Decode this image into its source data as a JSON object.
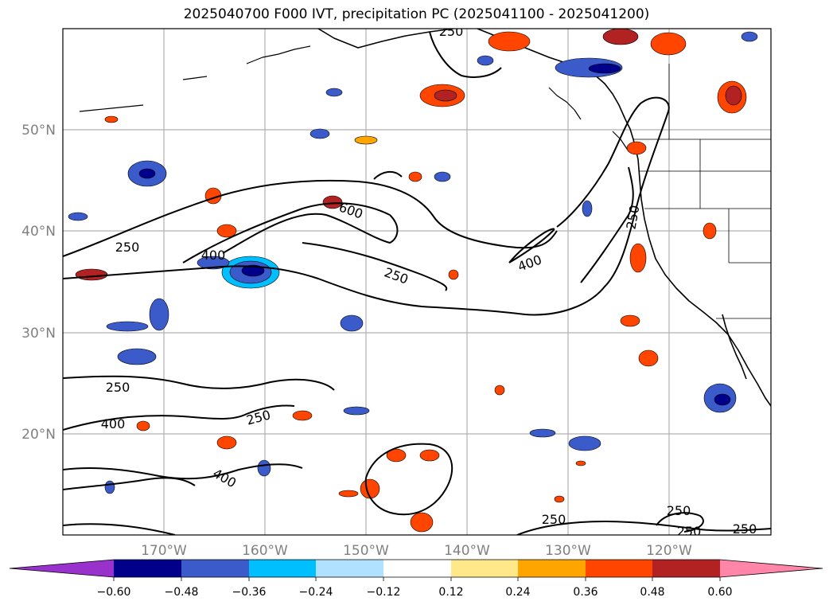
{
  "title": "2025040700 F000 IVT, precipitation PC (2025041100 - 2025041200)",
  "map": {
    "lon_labels": [
      "170°W",
      "160°W",
      "150°W",
      "140°W",
      "130°W",
      "120°W"
    ],
    "lat_labels": [
      "50°N",
      "40°N",
      "30°N",
      "20°N"
    ],
    "gridlines": true,
    "label_color": "#808080"
  },
  "contour_labels": [
    "250",
    "250",
    "400",
    "600",
    "250",
    "400",
    "250",
    "400",
    "250",
    "400",
    "250",
    "250",
    "250",
    "250",
    "250",
    "250",
    "600"
  ],
  "colorbar": {
    "extend": "both",
    "tick_labels": [
      "−0.60",
      "−0.48",
      "−0.36",
      "−0.24",
      "−0.12",
      "0.12",
      "0.24",
      "0.36",
      "0.48",
      "0.60"
    ],
    "colors": [
      "#9932cc",
      "#00008b",
      "#3a5bc9",
      "#00bfff",
      "#b0e2ff",
      "#ffffff",
      "#ffe88a",
      "#ffa500",
      "#ff4500",
      "#b22222",
      "#ff85a9"
    ]
  }
}
